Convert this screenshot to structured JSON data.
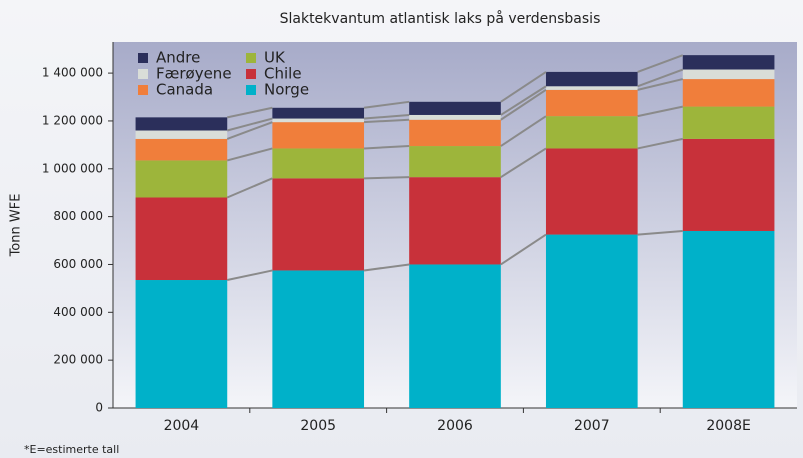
{
  "chart_data": {
    "type": "stacked_bar",
    "title": "Slaktekvantum atlantisk laks på verdensbasis",
    "y_label": "Tonn WFE",
    "footnote": "*E=estimerte tall",
    "categories": [
      "2004",
      "2005",
      "2006",
      "2007",
      "2008E"
    ],
    "series": [
      {
        "name": "Norge",
        "color": "#00b1c9",
        "values": [
          535000,
          575000,
          600000,
          725000,
          740000
        ]
      },
      {
        "name": "Chile",
        "color": "#c8313a",
        "values": [
          345000,
          385000,
          365000,
          360000,
          385000
        ]
      },
      {
        "name": "UK",
        "color": "#9db53b",
        "values": [
          155000,
          125000,
          130000,
          135000,
          135000
        ]
      },
      {
        "name": "Canada",
        "color": "#f07e3b",
        "values": [
          90000,
          110000,
          110000,
          110000,
          115000
        ]
      },
      {
        "name": "Færøyene",
        "color": "#d9ddd8",
        "values": [
          35000,
          15000,
          20000,
          15000,
          40000
        ]
      },
      {
        "name": "Andre",
        "color": "#2b2f5b",
        "values": [
          55000,
          45000,
          55000,
          60000,
          60000
        ]
      }
    ],
    "ylim": [
      0,
      1530000
    ],
    "yticks": [
      0,
      {
        "value": 200000,
        "label": "200 000"
      },
      {
        "value": 400000,
        "label": "400 000"
      },
      {
        "value": 600000,
        "label": "600 000"
      },
      {
        "value": 800000,
        "label": "800 000"
      },
      {
        "value": 1000000,
        "label": "1 000 000"
      },
      {
        "value": 1200000,
        "label": "1 200 000"
      },
      {
        "value": 1400000,
        "label": "1 400 000"
      }
    ],
    "legend": "top-left"
  }
}
